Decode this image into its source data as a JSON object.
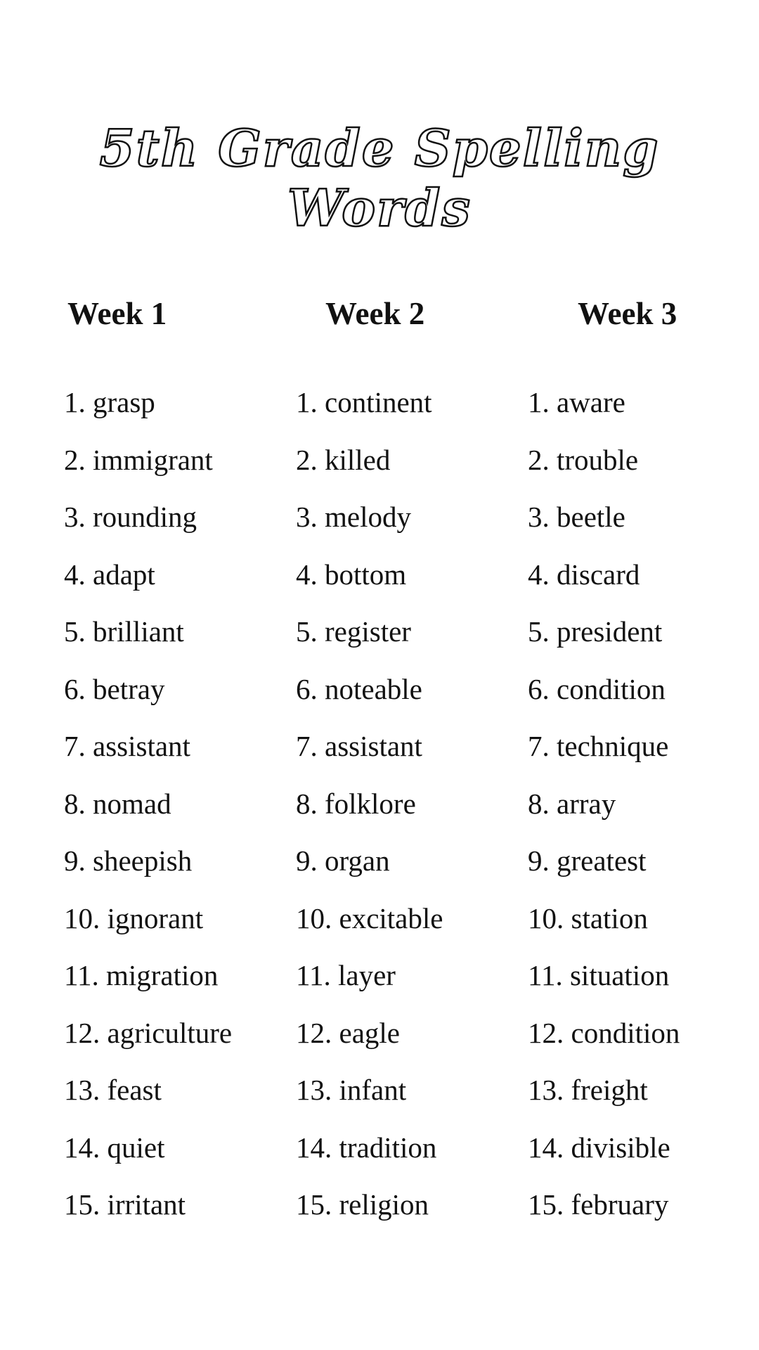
{
  "header": {
    "title": "5th Grade Spelling Words"
  },
  "columns": [
    {
      "heading": "Week 1",
      "items": [
        "1. grasp",
        "2. immigrant",
        "3. rounding",
        "4. adapt",
        "5. brilliant",
        "6. betray",
        "7. assistant",
        "8. nomad",
        "9. sheepish",
        "10. ignorant",
        "11. migration",
        "12. agriculture",
        "13. feast",
        "14. quiet",
        "15. irritant"
      ]
    },
    {
      "heading": "Week 2",
      "items": [
        "1. continent",
        "2. killed",
        "3. melody",
        "4. bottom",
        "5. register",
        "6. noteable",
        "7. assistant",
        "8. folklore",
        "9. organ",
        "10. excitable",
        "11. layer",
        "12. eagle",
        "13. infant",
        "14. tradition",
        "15. religion"
      ]
    },
    {
      "heading": "Week 3",
      "items": [
        "1. aware",
        "2. trouble",
        "3. beetle",
        "4. discard",
        "5. president",
        "6. condition",
        "7. technique",
        "8. array",
        "9. greatest",
        "10. station",
        "11. situation",
        "12. condition",
        "13. freight",
        "14. divisible",
        "15. february"
      ]
    }
  ]
}
